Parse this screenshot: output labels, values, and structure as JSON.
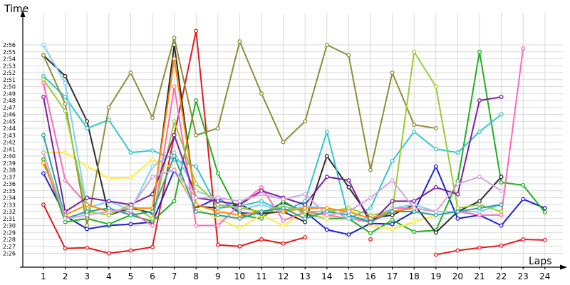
{
  "chart_data": {
    "type": "line",
    "xlabel": "Laps",
    "ylabel": "Time",
    "x": [
      1,
      2,
      3,
      4,
      5,
      6,
      7,
      8,
      9,
      10,
      11,
      12,
      13,
      14,
      15,
      16,
      17,
      18,
      19,
      20,
      21,
      22,
      23,
      24
    ],
    "y_range_seconds": [
      145,
      177.5
    ],
    "y_ticks": [
      "2:26",
      "2:27",
      "2:28",
      "2:29",
      "2:30",
      "2:31",
      "2:32",
      "2:33",
      "2:34",
      "2:35",
      "2:36",
      "2:37",
      "2:38",
      "2:39",
      "2:40",
      "2:41",
      "2:42",
      "2:43",
      "2:44",
      "2:45",
      "2:46",
      "2:47",
      "2:48",
      "2:49",
      "2:50",
      "2:51",
      "2:52",
      "2:53",
      "2:54",
      "2:55",
      "2:56"
    ],
    "grid": true,
    "legend": "none",
    "series": [
      {
        "color": "#e31a1c",
        "values": [
          153,
          146.7,
          146.8,
          146.0,
          146.4,
          146.9,
          163,
          178,
          147.2,
          147.0,
          148.0,
          147.4,
          148.3,
          null,
          null,
          148,
          null,
          null,
          145.8,
          146.4,
          146.8,
          147.1,
          148.0,
          147.9
        ]
      },
      {
        "color": "#1f1fd6",
        "values": [
          157.5,
          151.4,
          149.5,
          150.0,
          150.2,
          150.5,
          158,
          152.5,
          154.0,
          151.8,
          151.7,
          153.3,
          152.0,
          149.4,
          148.7,
          150.3,
          150.2,
          152.0,
          158.5,
          151.0,
          151.5,
          150.0,
          153.8,
          152.5
        ]
      },
      {
        "color": "#20b020",
        "values": [
          159.5,
          150.5,
          151.0,
          150.2,
          151.5,
          150.6,
          153.5,
          168,
          157.5,
          151.5,
          151.0,
          153.5,
          151.7,
          151.0,
          151.0,
          148.9,
          150.8,
          149.1,
          149.3,
          156.4,
          175,
          156.2,
          155.8,
          151.9
        ]
      },
      {
        "color": "#ffeb3b",
        "values": [
          160.5,
          160.5,
          158.5,
          156.8,
          156.9,
          159.5,
          158.2,
          152.5,
          151.0,
          149.6,
          151.5,
          150.0,
          152.0,
          151.0,
          152.5,
          150.0,
          149.5,
          150.5,
          151.5,
          null,
          null,
          null,
          null,
          null
        ]
      },
      {
        "color": "#2c2c2c",
        "values": [
          174.5,
          171.5,
          165,
          151.5,
          152.5,
          151.8,
          176,
          152.8,
          152.5,
          153.0,
          151.7,
          152.0,
          150.5,
          160,
          155.5,
          151.0,
          151.5,
          153.0,
          149.0,
          152.0,
          153.5,
          157.0,
          null,
          null
        ]
      },
      {
        "color": "#33c6cc",
        "values": [
          171.5,
          168.5,
          164.0,
          165.2,
          160.5,
          160.8,
          159.5,
          158.5,
          152.5,
          152.8,
          153.5,
          152.0,
          153.5,
          163.5,
          151.0,
          152.5,
          159.3,
          163.5,
          161.0,
          160.5,
          163.5,
          166.0,
          null,
          null
        ]
      },
      {
        "color": "#ff69b4",
        "values": [
          170.5,
          156.5,
          153.0,
          152.0,
          152.0,
          150.0,
          170.0,
          150.0,
          150.0,
          153.0,
          155.5,
          150.7,
          152.0,
          151.5,
          151.0,
          150.5,
          152.5,
          152.5,
          152.0,
          152.0,
          151.5,
          151.5,
          175.5,
          null
        ]
      },
      {
        "color": "#8e8e3a",
        "values": [
          174.5,
          167.5,
          150.0,
          167.0,
          172.0,
          165.5,
          177.0,
          163.0,
          164.0,
          176.5,
          169.0,
          162.0,
          165.0,
          176.0,
          174.5,
          158.0,
          172.0,
          164.5,
          164.0,
          null,
          null,
          null,
          null,
          null
        ]
      },
      {
        "color": "#7fd0f5",
        "values": [
          176.0,
          170.5,
          152.5,
          153.5,
          152.2,
          158.5,
          160.5,
          155.0,
          153.8,
          152.3,
          153.0,
          152.0,
          152.8,
          152.5,
          151.0,
          151.0,
          152.5,
          153.0,
          152.0,
          152.0,
          152.0,
          153.0,
          null,
          null
        ]
      },
      {
        "color": "#9acd32",
        "values": [
          171.0,
          166.5,
          152.0,
          151.5,
          153.0,
          151.0,
          165.0,
          156.0,
          153.0,
          152.5,
          152.0,
          152.8,
          152.0,
          152.0,
          152.5,
          151.5,
          152.0,
          175.0,
          170.0,
          152.5,
          153.0,
          152.0,
          null,
          null
        ]
      },
      {
        "color": "#7b1fa2",
        "values": [
          168.5,
          152.0,
          154.0,
          153.5,
          153.0,
          154.5,
          163.0,
          154.0,
          153.5,
          153.0,
          155.0,
          154.0,
          153.0,
          157.0,
          156.5,
          150.3,
          153.5,
          153.5,
          155.5,
          154.5,
          168.0,
          168.5,
          null,
          null
        ]
      },
      {
        "color": "#ff8c00",
        "values": [
          159.0,
          151.5,
          153.0,
          152.0,
          152.5,
          152.5,
          174.0,
          153.0,
          152.0,
          151.5,
          152.0,
          152.0,
          152.5,
          152.5,
          152.0,
          151.0,
          152.0,
          152.5,
          152.0,
          null,
          null,
          null,
          null,
          null
        ]
      },
      {
        "color": "#2aa198",
        "values": [
          163.0,
          151.0,
          152.0,
          152.5,
          151.5,
          152.0,
          160.0,
          152.0,
          151.5,
          151.0,
          152.0,
          152.5,
          151.0,
          152.0,
          151.5,
          150.5,
          152.0,
          152.0,
          151.5,
          152.0,
          152.5,
          153.0,
          null,
          null
        ]
      },
      {
        "color": "#d1a3e0",
        "values": [
          160.5,
          151.0,
          151.5,
          152.0,
          152.5,
          157.0,
          158.0,
          154.0,
          154.0,
          153.5,
          154.5,
          153.8,
          154.5,
          151.5,
          152.0,
          154.0,
          156.5,
          152.5,
          152.0,
          156.0,
          157.0,
          155.0,
          null,
          null
        ]
      }
    ]
  }
}
